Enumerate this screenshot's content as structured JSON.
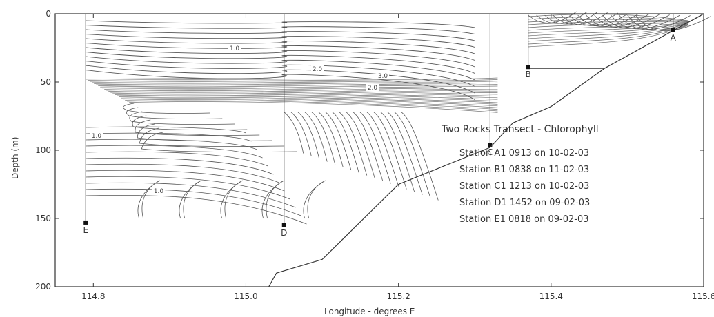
{
  "chart_data": {
    "type": "contour",
    "title": "Two Rocks Transect - Chlorophyll",
    "xlabel": "Longitude - degrees E",
    "ylabel": "Depth (m)",
    "xlim": [
      114.75,
      115.6
    ],
    "ylim": [
      200,
      0
    ],
    "xticks": [
      "114.8",
      "115.0",
      "115.2",
      "115.4",
      "115.6"
    ],
    "yticks": [
      "0",
      "50",
      "100",
      "150",
      "200"
    ],
    "stations": [
      {
        "letter": "A",
        "lon": 115.56,
        "depth": 12
      },
      {
        "letter": "B",
        "lon": 115.37,
        "depth": 39
      },
      {
        "letter": "C",
        "lon": 115.32,
        "depth": 96
      },
      {
        "letter": "D",
        "lon": 115.05,
        "depth": 155
      },
      {
        "letter": "E",
        "lon": 114.79,
        "depth": 153
      }
    ],
    "legend_lines": [
      "Station A1  0913  on  10-02-03",
      "Station B1  0838  on  11-02-03",
      "Station C1  1213  on  10-02-03",
      "Station D1  1452  on  09-02-03",
      "Station E1  0818  on  09-02-03"
    ],
    "contour_labels": [
      "1.0",
      "2.0",
      "3.0",
      "1.0",
      "2.0",
      "1.0"
    ],
    "bathymetry": [
      [
        115.03,
        200
      ],
      [
        115.04,
        190
      ],
      [
        115.1,
        180
      ],
      [
        115.2,
        125
      ],
      [
        115.32,
        98
      ],
      [
        115.35,
        80
      ],
      [
        115.4,
        68
      ],
      [
        115.47,
        40
      ],
      [
        115.37,
        40
      ],
      [
        115.6,
        0
      ]
    ],
    "color_line": "#333333"
  }
}
